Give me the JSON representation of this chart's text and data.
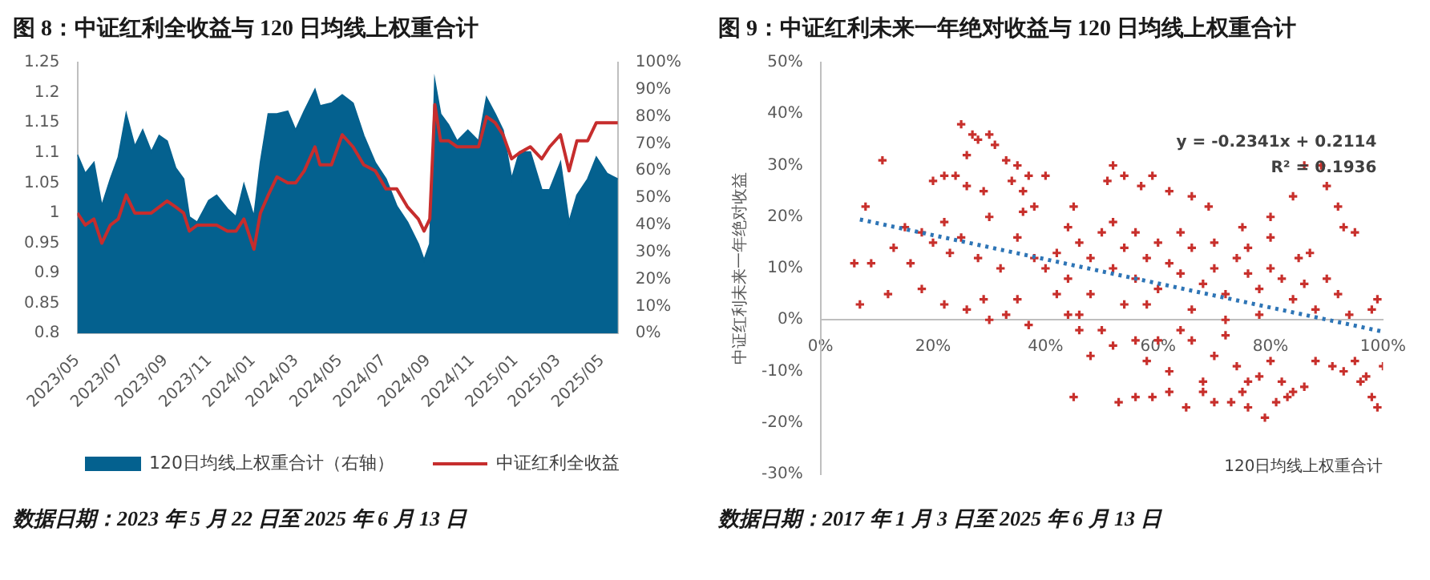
{
  "chart_data": [
    {
      "type": "line",
      "title": "图 8：中证红利全收益与 120 日均线上权重合计",
      "x": [
        "2023-05-22",
        "2023-06-02",
        "2023-06-14",
        "2023-06-25",
        "2023-07-07",
        "2023-07-18",
        "2023-07-29",
        "2023-08-10",
        "2023-08-21",
        "2023-09-02",
        "2023-09-13",
        "2023-09-24",
        "2023-10-06",
        "2023-10-17",
        "2023-10-25",
        "2023-11-05",
        "2023-11-21",
        "2023-12-02",
        "2023-12-17",
        "2023-12-29",
        "2024-01-09",
        "2024-01-23",
        "2024-02-01",
        "2024-02-12",
        "2024-02-24",
        "2024-03-10",
        "2024-03-21",
        "2024-04-02",
        "2024-04-17",
        "2024-04-24",
        "2024-05-10",
        "2024-05-25",
        "2024-06-09",
        "2024-06-24",
        "2024-07-10",
        "2024-07-25",
        "2024-08-09",
        "2024-08-24",
        "2024-09-08",
        "2024-09-16",
        "2024-09-24",
        "2024-10-01",
        "2024-10-09",
        "2024-10-20",
        "2024-11-01",
        "2024-11-16",
        "2024-12-01",
        "2024-12-12",
        "2024-12-24",
        "2025-01-04",
        "2025-01-16",
        "2025-01-27",
        "2025-02-11",
        "2025-02-27",
        "2025-03-10",
        "2025-03-25",
        "2025-04-06",
        "2025-04-17",
        "2025-05-02",
        "2025-05-14",
        "2025-05-29",
        "2025-06-13"
      ],
      "series": [
        {
          "name": "120日均线上权重合计（右轴）",
          "type": "area",
          "axis": "y2",
          "color": "#04618f",
          "values": [
            66,
            59,
            63,
            47,
            57,
            65,
            81,
            69,
            75,
            67,
            73,
            71,
            61,
            57,
            43,
            41,
            49,
            51,
            46,
            43,
            55,
            43,
            63,
            81,
            81,
            82,
            75,
            82,
            90,
            84,
            85,
            88,
            85,
            73,
            63,
            57,
            47,
            41,
            33,
            27,
            33,
            93,
            81,
            77,
            71,
            75,
            71,
            87,
            81,
            75,
            57,
            67,
            67,
            53,
            53,
            63,
            41,
            51,
            57,
            65,
            59,
            57
          ]
        },
        {
          "name": "中证红利全收益",
          "color": "#c62d2d",
          "values": [
            1.0,
            0.98,
            0.99,
            0.95,
            0.98,
            0.99,
            1.03,
            1.0,
            1.0,
            1.0,
            1.01,
            1.02,
            1.01,
            1.0,
            0.97,
            0.98,
            0.98,
            0.98,
            0.97,
            0.97,
            0.99,
            0.94,
            1.0,
            1.03,
            1.06,
            1.05,
            1.05,
            1.07,
            1.11,
            1.08,
            1.08,
            1.13,
            1.11,
            1.08,
            1.07,
            1.04,
            1.04,
            1.01,
            0.99,
            0.97,
            0.99,
            1.18,
            1.12,
            1.12,
            1.11,
            1.11,
            1.11,
            1.16,
            1.15,
            1.13,
            1.09,
            1.1,
            1.11,
            1.09,
            1.11,
            1.13,
            1.07,
            1.12,
            1.12,
            1.15,
            1.15,
            1.15
          ]
        }
      ],
      "xlim": [
        "2023-05-22",
        "2025-06-13"
      ],
      "xticks": [
        {
          "value": "2023-05-22",
          "label": "2023/05"
        },
        {
          "value": "2023-07-22",
          "label": "2023/07"
        },
        {
          "value": "2023-09-22",
          "label": "2023/09"
        },
        {
          "value": "2023-11-22",
          "label": "2023/11"
        },
        {
          "value": "2024-01-22",
          "label": "2024/01"
        },
        {
          "value": "2024-03-22",
          "label": "2024/03"
        },
        {
          "value": "2024-05-22",
          "label": "2024/05"
        },
        {
          "value": "2024-07-22",
          "label": "2024/07"
        },
        {
          "value": "2024-09-22",
          "label": "2024/09"
        },
        {
          "value": "2024-11-22",
          "label": "2024/11"
        },
        {
          "value": "2025-01-22",
          "label": "2025/01"
        },
        {
          "value": "2025-03-22",
          "label": "2025/03"
        },
        {
          "value": "2025-05-22",
          "label": "2025/05"
        }
      ],
      "ylim": [
        0.8,
        1.25
      ],
      "yticks": [
        0.8,
        0.85,
        0.9,
        0.95,
        1,
        1.05,
        1.1,
        1.15,
        1.2,
        1.25
      ],
      "y2lim": [
        0,
        100
      ],
      "y2ticks": [
        {
          "value": 0,
          "label": "0%"
        },
        {
          "value": 10,
          "label": "10%"
        },
        {
          "value": 20,
          "label": "20%"
        },
        {
          "value": 30,
          "label": "30%"
        },
        {
          "value": 40,
          "label": "40%"
        },
        {
          "value": 50,
          "label": "50%"
        },
        {
          "value": 60,
          "label": "60%"
        },
        {
          "value": 70,
          "label": "70%"
        },
        {
          "value": 80,
          "label": "80%"
        },
        {
          "value": 90,
          "label": "90%"
        },
        {
          "value": 100,
          "label": "100%"
        }
      ],
      "legend": "bottom",
      "annotations": [
        "数据日期：2023 年 5 月 22 日至 2025 年 6 月 13 日"
      ]
    },
    {
      "type": "scatter",
      "title": "图 9：中证红利未来一年绝对收益与 120 日均线上权重合计",
      "xlabel": "120日均线上权重合计",
      "ylabel": "中证红利未来一年绝对收益",
      "series": [
        {
          "marker": "cross",
          "color": "#c8302c",
          "x": [
            25,
            27,
            28,
            30,
            31,
            26,
            33,
            35,
            37,
            34,
            40,
            24,
            22,
            20,
            26,
            29,
            36,
            38,
            45,
            52,
            54,
            51,
            57,
            59,
            62,
            66,
            69,
            75,
            80,
            84,
            86,
            89,
            90,
            92,
            93,
            95,
            11,
            8,
            13,
            15,
            18,
            20,
            23,
            16,
            9,
            6,
            7,
            12,
            18,
            22,
            26,
            29,
            30,
            33,
            35,
            37,
            44,
            46,
            48,
            45,
            50,
            52,
            54,
            56,
            58,
            60,
            62,
            64,
            66,
            68,
            70,
            72,
            74,
            76,
            78,
            80,
            82,
            84,
            86,
            88,
            91,
            93,
            95,
            96,
            98,
            99,
            97,
            100,
            99,
            98,
            53,
            56,
            59,
            62,
            65,
            68,
            70,
            73,
            76,
            79,
            81,
            83,
            75,
            40,
            42,
            44,
            46,
            48,
            50,
            52,
            54,
            56,
            58,
            60,
            62,
            64,
            66,
            68,
            70,
            72,
            74,
            76,
            78,
            80,
            82,
            84,
            86,
            88,
            90,
            92,
            94,
            48,
            52,
            56,
            60,
            64,
            70,
            76,
            80,
            85,
            87,
            44,
            38,
            35,
            32,
            28,
            25,
            22,
            30,
            36,
            42,
            46,
            58,
            66,
            72,
            78
          ],
          "values": [
            38,
            36,
            35,
            36,
            34,
            32,
            31,
            30,
            28,
            27,
            28,
            28,
            28,
            27,
            26,
            25,
            25,
            22,
            22,
            30,
            28,
            27,
            26,
            28,
            25,
            24,
            22,
            18,
            20,
            24,
            30,
            30,
            26,
            22,
            18,
            17,
            31,
            22,
            14,
            18,
            17,
            15,
            13,
            11,
            11,
            11,
            3,
            5,
            6,
            3,
            2,
            4,
            0,
            1,
            4,
            -1,
            1,
            -2,
            -7,
            -15,
            -2,
            -5,
            3,
            -4,
            -8,
            -4,
            -10,
            -2,
            -4,
            -12,
            -7,
            -3,
            -9,
            -12,
            -11,
            -8,
            -12,
            -14,
            -13,
            -8,
            -9,
            -10,
            -8,
            -12,
            -15,
            -17,
            -11,
            -9,
            4,
            2,
            -16,
            -15,
            -15,
            -14,
            -17,
            -14,
            -16,
            -16,
            -17,
            -19,
            -16,
            -15,
            -14,
            10,
            13,
            8,
            15,
            12,
            17,
            10,
            14,
            8,
            12,
            6,
            11,
            9,
            14,
            7,
            10,
            5,
            12,
            9,
            6,
            10,
            8,
            4,
            7,
            2,
            8,
            5,
            1,
            5,
            19,
            17,
            15,
            17,
            15,
            14,
            16,
            12,
            13,
            18,
            12,
            16,
            10,
            12,
            16,
            19,
            20,
            21,
            5,
            1,
            3,
            2,
            0,
            1
          ]
        },
        {
          "type": "line",
          "marker": "none",
          "line_style": "dotted",
          "color": "#2e75b6",
          "x": [
            7,
            100
          ],
          "values": [
            19.5,
            -2.3
          ]
        }
      ],
      "xlim": [
        0,
        100
      ],
      "xticks": [
        {
          "value": 0,
          "label": "0%"
        },
        {
          "value": 20,
          "label": "20%"
        },
        {
          "value": 40,
          "label": "40%"
        },
        {
          "value": 60,
          "label": "60%"
        },
        {
          "value": 80,
          "label": "80%"
        },
        {
          "value": 100,
          "label": "100%"
        }
      ],
      "ylim": [
        -30,
        50
      ],
      "yticks": [
        {
          "value": -30,
          "label": "-30%"
        },
        {
          "value": -20,
          "label": "-20%"
        },
        {
          "value": -10,
          "label": "-10%"
        },
        {
          "value": 0,
          "label": "0%"
        },
        {
          "value": 10,
          "label": "10%"
        },
        {
          "value": 20,
          "label": "20%"
        },
        {
          "value": 30,
          "label": "30%"
        },
        {
          "value": 40,
          "label": "40%"
        },
        {
          "value": 50,
          "label": "50%"
        }
      ],
      "annotations": [
        "y = -0.2341x + 0.2114",
        "R² = 0.1936",
        "数据日期：2017 年 1 月 3 日至 2025 年 6 月 13 日"
      ]
    }
  ]
}
